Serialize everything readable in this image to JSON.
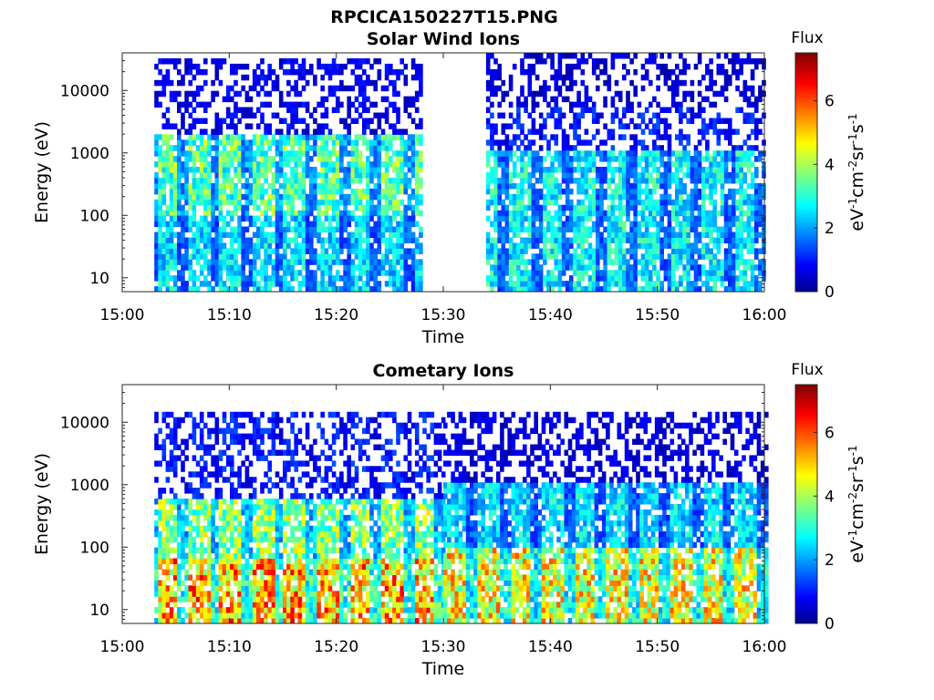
{
  "figure": {
    "title": "RPCICA150227T15.PNG"
  },
  "chart_data": [
    {
      "type": "heatmap",
      "title": "Solar Wind Ions",
      "xlabel": "Time",
      "ylabel": "Energy (eV)",
      "x_ticks": [
        "15:00",
        "15:10",
        "15:20",
        "15:30",
        "15:40",
        "15:50",
        "16:00"
      ],
      "xlim": [
        "15:00",
        "16:00"
      ],
      "y_scale": "log",
      "y_ticks": [
        "10",
        "100",
        "1000",
        "10000"
      ],
      "ylim": [
        6,
        40000
      ],
      "colorbar": {
        "label": "Flux",
        "unit": "eV-1cm-2sr-1s-1",
        "ticks": [
          "0",
          "2",
          "4",
          "6"
        ],
        "range": [
          0,
          7.5
        ],
        "colormap": "jet"
      },
      "bands": [
        {
          "time_range": [
            "15:03",
            "15:28"
          ],
          "energy_range": [
            100,
            2000
          ],
          "flux": 3.4,
          "note": "repeating dispersed structures near 400-1000 eV"
        },
        {
          "time_range": [
            "15:03",
            "15:28"
          ],
          "energy_range": [
            6,
            100
          ],
          "flux": 2.6
        },
        {
          "time_range": [
            "15:03",
            "15:28"
          ],
          "energy_range": [
            2000,
            30000
          ],
          "flux": 0.9
        },
        {
          "time_range": [
            "15:34",
            "16:00"
          ],
          "energy_range": [
            5000,
            40000
          ],
          "flux": 0.7
        },
        {
          "time_range": [
            "15:34",
            "16:00"
          ],
          "energy_range": [
            1000,
            5000
          ],
          "flux": 1.2
        },
        {
          "time_range": [
            "15:34",
            "16:00"
          ],
          "energy_range": [
            6,
            1000
          ],
          "flux": 2.8
        }
      ]
    },
    {
      "type": "heatmap",
      "title": "Cometary Ions",
      "xlabel": "Time",
      "ylabel": "Energy (eV)",
      "x_ticks": [
        "15:00",
        "15:10",
        "15:20",
        "15:30",
        "15:40",
        "15:50",
        "16:00"
      ],
      "xlim": [
        "15:00",
        "16:00"
      ],
      "y_scale": "log",
      "y_ticks": [
        "10",
        "100",
        "1000",
        "10000"
      ],
      "ylim": [
        6,
        40000
      ],
      "colorbar": {
        "label": "Flux",
        "unit": "eV-1cm-2sr-1s-1",
        "ticks": [
          "0",
          "2",
          "4",
          "6"
        ],
        "range": [
          0,
          7.5
        ],
        "colormap": "jet"
      },
      "bands": [
        {
          "time_range": [
            "15:03",
            "15:30"
          ],
          "energy_range": [
            6,
            60
          ],
          "flux": 5.2,
          "note": "periodic stripes every ~3 min, peaks near 5.5"
        },
        {
          "time_range": [
            "15:03",
            "15:30"
          ],
          "energy_range": [
            60,
            600
          ],
          "flux": 3.8
        },
        {
          "time_range": [
            "15:03",
            "15:30"
          ],
          "energy_range": [
            600,
            15000
          ],
          "flux": 1.2
        },
        {
          "time_range": [
            "15:30",
            "16:00"
          ],
          "energy_range": [
            6,
            100
          ],
          "flux": 4.6
        },
        {
          "time_range": [
            "15:30",
            "16:00"
          ],
          "energy_range": [
            100,
            1000
          ],
          "flux": 2.6
        },
        {
          "time_range": [
            "15:30",
            "16:00"
          ],
          "energy_range": [
            1000,
            15000
          ],
          "flux": 0.8
        }
      ]
    }
  ]
}
